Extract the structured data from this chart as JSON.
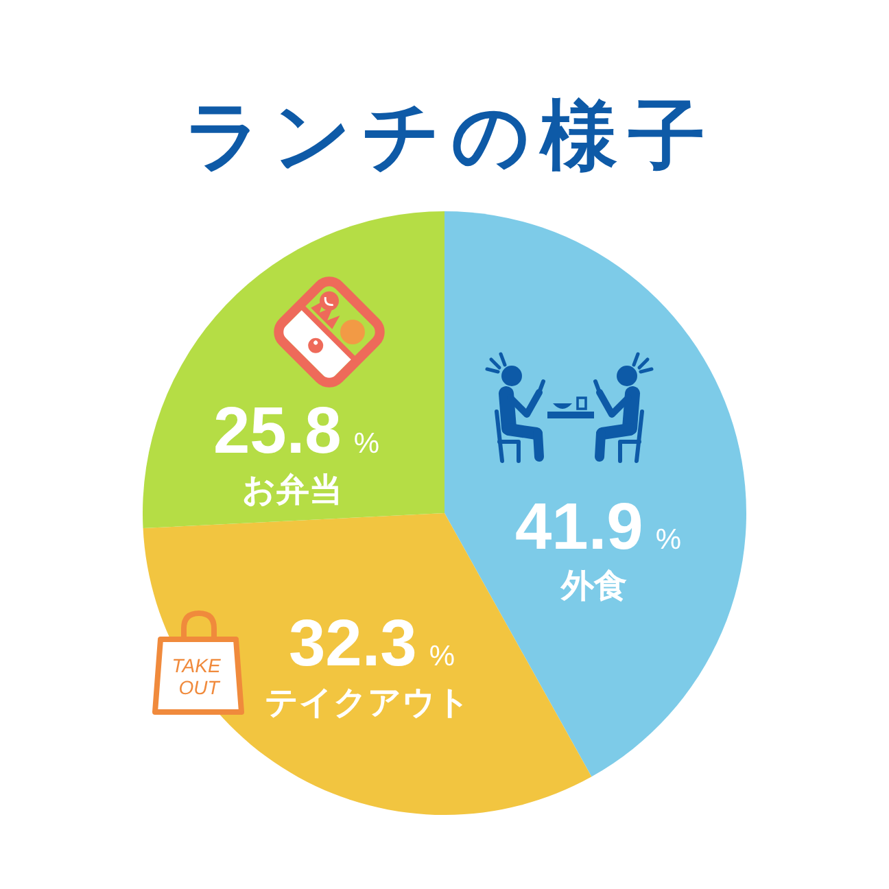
{
  "chart_data": {
    "type": "pie",
    "title": "ランチの様子",
    "categories": [
      "外食",
      "テイクアウト",
      "お弁当"
    ],
    "values": [
      41.9,
      32.3,
      25.8
    ],
    "colors": [
      "#7dcbe8",
      "#f2c540",
      "#b5dd45"
    ],
    "value_labels": [
      "41.9%",
      "32.3%",
      "25.8%"
    ],
    "annotations": [
      "TAKE OUT"
    ]
  }
}
